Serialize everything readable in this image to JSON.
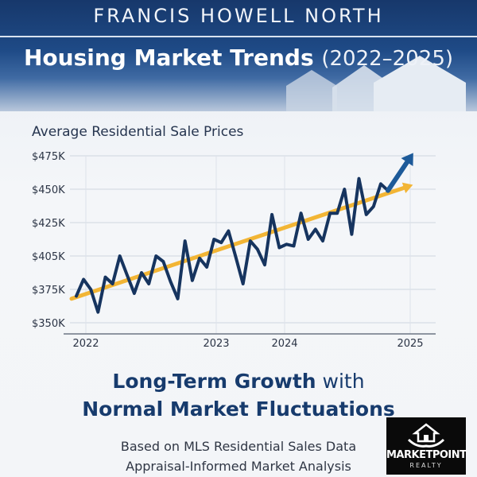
{
  "header": {
    "kicker": "FRANCIS HOWELL NORTH",
    "title_main": "Housing Market Trends",
    "title_years": "(2022–2025)"
  },
  "chart_data": {
    "type": "line",
    "title": "Average Residential Sale Prices",
    "yticks": [
      "$350K",
      "$375K",
      "$405K",
      "$425K",
      "$450K",
      "$475K"
    ],
    "xticks": [
      "2022",
      "2023",
      "2024",
      "2025"
    ],
    "ylim": [
      350000,
      475000
    ],
    "grid": true,
    "series": [
      {
        "values": [
          370000,
          384000,
          375000,
          358000,
          386000,
          380000,
          405000,
          388000,
          372000,
          390000,
          380000,
          405000,
          400000,
          382000,
          368000,
          414000,
          383000,
          403000,
          395000,
          415000,
          413000,
          420000,
          404000,
          380000,
          414000,
          409000,
          397000,
          431000,
          410000,
          412000,
          411000,
          432000,
          415000,
          421000,
          414000,
          432000,
          432000,
          450000,
          418000,
          458000,
          431000,
          437000,
          454000,
          449000
        ]
      }
    ],
    "trend": {
      "start": 368000,
      "end": 451000
    },
    "colors": {
      "line": "#16345f",
      "trend": "#f2b535",
      "arrow": "#1d5a99"
    }
  },
  "tagline": {
    "line1_bold": "Long-Term Growth",
    "line1_rest": " with",
    "line2": "Normal Market Fluctuations"
  },
  "footer": {
    "line1": "Based on MLS Residential Sales Data",
    "line2": "Appraisal-Informed Market Analysis"
  },
  "logo": {
    "brand": "MARKETPOINT",
    "sub": "REALTY"
  }
}
